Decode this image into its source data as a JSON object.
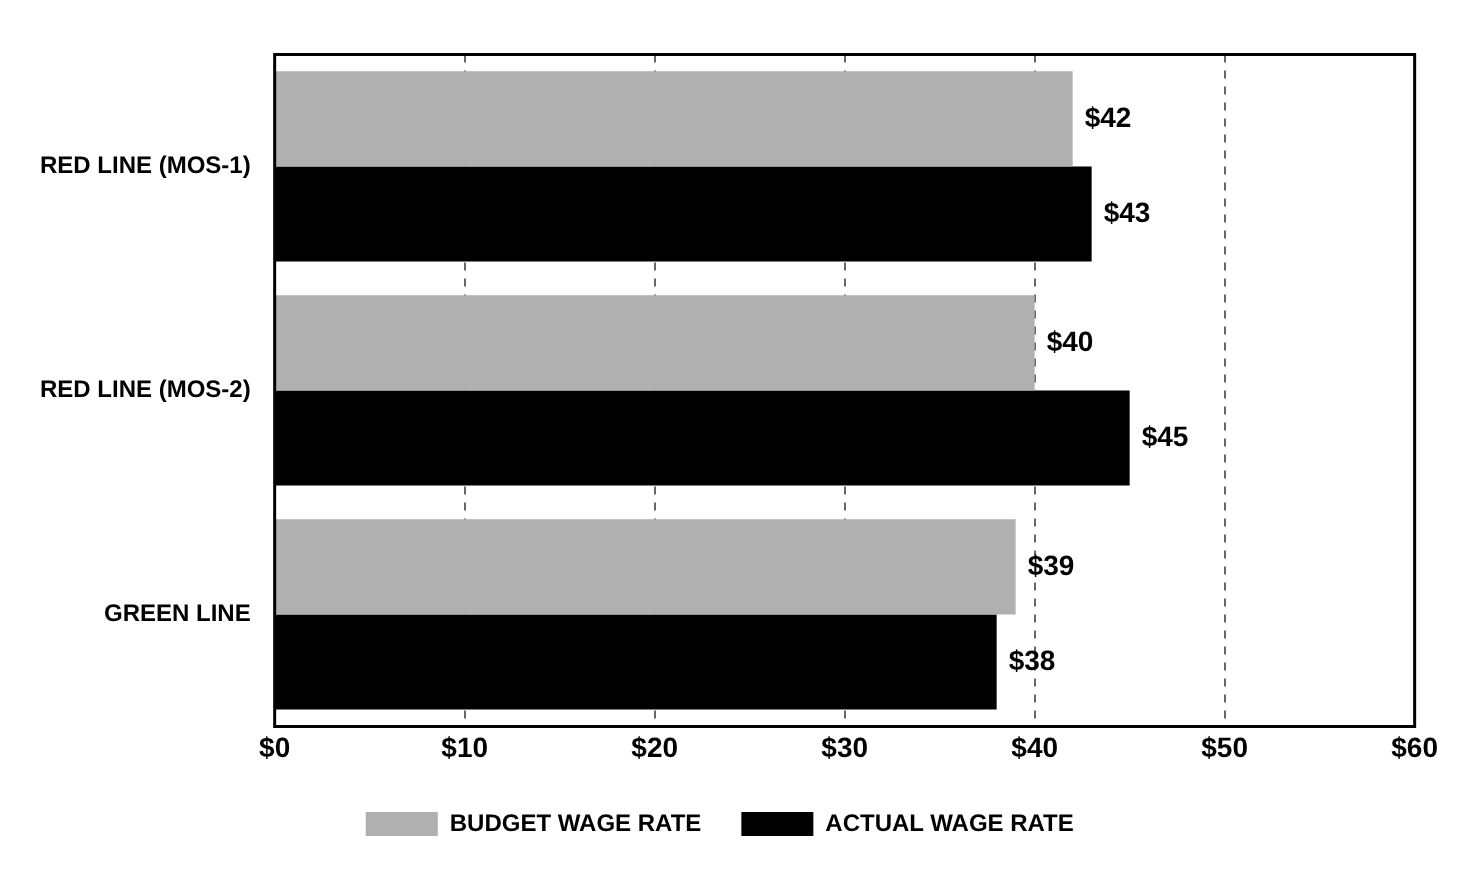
{
  "chart_data": {
    "type": "bar",
    "orientation": "horizontal",
    "categories": [
      "RED LINE (MOS-1)",
      "RED LINE (MOS-2)",
      "GREEN LINE"
    ],
    "series": [
      {
        "name": "BUDGET WAGE RATE",
        "color": "#b0b0b0",
        "values": [
          42,
          40,
          39
        ],
        "value_labels": [
          "$42",
          "$40",
          "$39"
        ]
      },
      {
        "name": "ACTUAL WAGE RATE",
        "color": "#000000",
        "values": [
          43,
          45,
          38
        ],
        "value_labels": [
          "$43",
          "$45",
          "$38"
        ]
      }
    ],
    "xlim": [
      0,
      60
    ],
    "xticks": [
      {
        "value": 0,
        "label": "$0"
      },
      {
        "value": 10,
        "label": "$10"
      },
      {
        "value": 20,
        "label": "$20"
      },
      {
        "value": 30,
        "label": "$30"
      },
      {
        "value": 40,
        "label": "$40"
      },
      {
        "value": 50,
        "label": "$50"
      },
      {
        "value": 60,
        "label": "$60"
      }
    ],
    "grid": "x",
    "legend": "bottom"
  }
}
